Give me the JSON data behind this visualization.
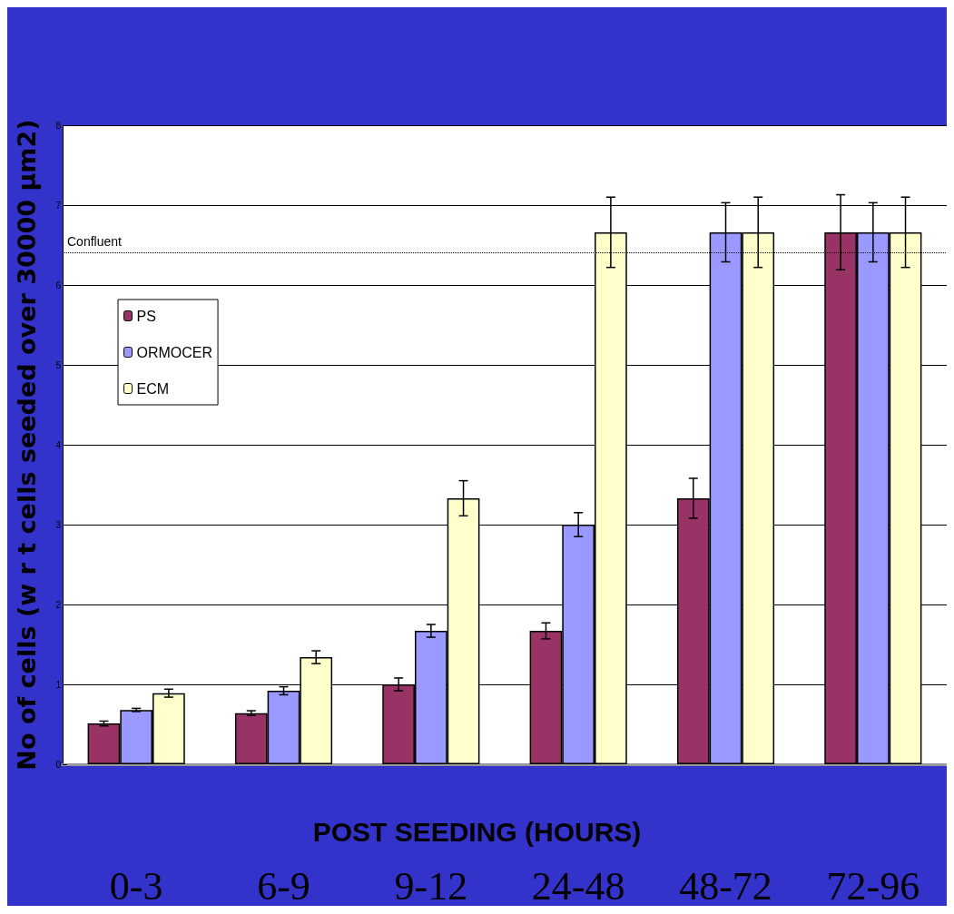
{
  "chart_data": {
    "type": "bar",
    "xlabel": "POST SEEDING (HOURS)",
    "ylabel": "No of cells (w r t cells seeded over 30000 µm2)",
    "categories": [
      "0-3",
      "6-9",
      "9-12",
      "24-48",
      "48-72",
      "72-96"
    ],
    "series": [
      {
        "name": "PS",
        "color": "#993366",
        "values": [
          0.51,
          0.64,
          1.0,
          1.67,
          3.33,
          6.66
        ],
        "errors": [
          0.03,
          0.03,
          0.08,
          0.1,
          0.25,
          0.47
        ]
      },
      {
        "name": "ORMOCER",
        "color": "#9999ff",
        "values": [
          0.68,
          0.92,
          1.67,
          3.0,
          6.66,
          6.66
        ],
        "errors": [
          0.02,
          0.05,
          0.08,
          0.15,
          0.37,
          0.37
        ]
      },
      {
        "name": "ECM",
        "color": "#ffffcc",
        "values": [
          0.89,
          1.34,
          3.33,
          6.66,
          6.66,
          6.66
        ],
        "errors": [
          0.05,
          0.08,
          0.22,
          0.44,
          0.44,
          0.44
        ]
      }
    ],
    "ylim": [
      0,
      8
    ],
    "yticks": [
      0,
      1,
      2,
      3,
      4,
      5,
      6,
      7,
      8
    ],
    "grid": "y",
    "legend": "left",
    "ref_lines": [
      {
        "axis": "y",
        "value": 6.41,
        "label": "Confluent",
        "line_style": "dotted"
      }
    ]
  }
}
